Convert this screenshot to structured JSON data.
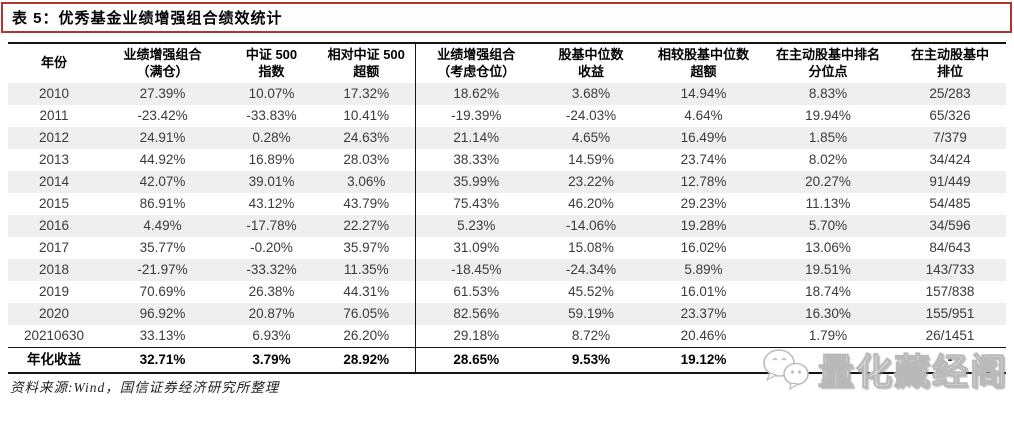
{
  "title": "表 5：优秀基金业绩增强组合绩效统计",
  "table": {
    "headers": [
      {
        "line1": "年份",
        "line2": ""
      },
      {
        "line1": "业绩增强组合",
        "line2": "（满仓）"
      },
      {
        "line1": "中证 500",
        "line2": "指数"
      },
      {
        "line1": "相对中证 500",
        "line2": "超额"
      },
      {
        "line1": "业绩增强组合",
        "line2": "（考虑仓位）"
      },
      {
        "line1": "股基中位数",
        "line2": "收益"
      },
      {
        "line1": "相较股基中位数",
        "line2": "超额"
      },
      {
        "line1": "在主动股基中排名",
        "line2": "分位点"
      },
      {
        "line1": "在主动股基中",
        "line2": "排位"
      }
    ],
    "rows": [
      [
        "2010",
        "27.39%",
        "10.07%",
        "17.32%",
        "18.62%",
        "3.68%",
        "14.94%",
        "8.83%",
        "25/283"
      ],
      [
        "2011",
        "-23.42%",
        "-33.83%",
        "10.41%",
        "-19.39%",
        "-24.03%",
        "4.64%",
        "19.94%",
        "65/326"
      ],
      [
        "2012",
        "24.91%",
        "0.28%",
        "24.63%",
        "21.14%",
        "4.65%",
        "16.49%",
        "1.85%",
        "7/379"
      ],
      [
        "2013",
        "44.92%",
        "16.89%",
        "28.03%",
        "38.33%",
        "14.59%",
        "23.74%",
        "8.02%",
        "34/424"
      ],
      [
        "2014",
        "42.07%",
        "39.01%",
        "3.06%",
        "35.99%",
        "23.22%",
        "12.78%",
        "20.27%",
        "91/449"
      ],
      [
        "2015",
        "86.91%",
        "43.12%",
        "43.79%",
        "75.43%",
        "46.20%",
        "29.23%",
        "11.13%",
        "54/485"
      ],
      [
        "2016",
        "4.49%",
        "-17.78%",
        "22.27%",
        "5.23%",
        "-14.06%",
        "19.28%",
        "5.70%",
        "34/596"
      ],
      [
        "2017",
        "35.77%",
        "-0.20%",
        "35.97%",
        "31.09%",
        "15.08%",
        "16.02%",
        "13.06%",
        "84/643"
      ],
      [
        "2018",
        "-21.97%",
        "-33.32%",
        "11.35%",
        "-18.45%",
        "-24.34%",
        "5.89%",
        "19.51%",
        "143/733"
      ],
      [
        "2019",
        "70.69%",
        "26.38%",
        "44.31%",
        "61.53%",
        "45.52%",
        "16.01%",
        "18.74%",
        "157/838"
      ],
      [
        "2020",
        "96.92%",
        "20.87%",
        "76.05%",
        "82.56%",
        "59.19%",
        "23.37%",
        "16.30%",
        "155/951"
      ],
      [
        "20210630",
        "33.13%",
        "6.93%",
        "26.20%",
        "29.18%",
        "8.72%",
        "20.46%",
        "1.79%",
        "26/1451"
      ]
    ],
    "summary_row": [
      "年化收益",
      "32.71%",
      "3.79%",
      "28.92%",
      "28.65%",
      "9.53%",
      "19.12%",
      "-",
      "-"
    ]
  },
  "footer": {
    "source": "资料来源:Wind，国信证券经济研究所整理"
  },
  "watermark": {
    "text": "量化藏经阁",
    "icon": "wechat-icon"
  },
  "colors": {
    "title_border": "#b0352f",
    "table_line": "#141414",
    "row_stripe": "#efefef",
    "data_text": "#3a3a3a",
    "watermark_outline": "#b9b9b9"
  }
}
